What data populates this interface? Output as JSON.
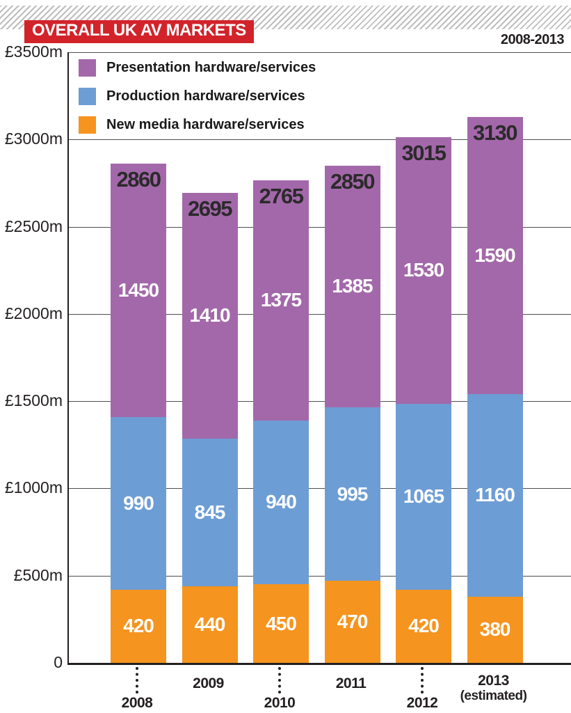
{
  "header": {
    "title": "OVERALL UK AV MARKETS",
    "range": "2008-2013",
    "badge_color": "#d2232a"
  },
  "legend": {
    "items": [
      {
        "label": "Presentation hardware/services",
        "color": "#a368aa"
      },
      {
        "label": "Production hardware/services",
        "color": "#6d9dd5"
      },
      {
        "label": "New media hardware/services",
        "color": "#f5941f"
      }
    ]
  },
  "y_axis": {
    "tick_labels": [
      "£3500m",
      "£3000m",
      "£2500m",
      "£2000m",
      "£1500m",
      "£1000m",
      "£500m",
      "0"
    ],
    "max": 3500,
    "step": 500
  },
  "chart_data": {
    "type": "bar",
    "stacked": true,
    "title": "OVERALL UK AV MARKETS",
    "subtitle": "2008-2013",
    "categories": [
      "2008",
      "2009",
      "2010",
      "2011",
      "2012",
      "2013 (estimated)"
    ],
    "series": [
      {
        "name": "New media hardware/services",
        "color": "#f5941f",
        "values": [
          420,
          440,
          450,
          470,
          420,
          380
        ]
      },
      {
        "name": "Production hardware/services",
        "color": "#6d9dd5",
        "values": [
          990,
          845,
          940,
          995,
          1065,
          1160
        ]
      },
      {
        "name": "Presentation hardware/services",
        "color": "#a368aa",
        "values": [
          1450,
          1410,
          1375,
          1385,
          1530,
          1590
        ]
      }
    ],
    "totals": [
      2860,
      2695,
      2765,
      2850,
      3015,
      3130
    ],
    "ylabel": "£m",
    "ylim": [
      0,
      3500
    ],
    "grid": true,
    "legend_position": "top-left-inside"
  },
  "x_axis": {
    "labels": [
      {
        "text": "2008",
        "sub": "",
        "row": "low",
        "leader": true
      },
      {
        "text": "2009",
        "sub": "",
        "row": "high",
        "leader": false
      },
      {
        "text": "2010",
        "sub": "",
        "row": "low",
        "leader": true
      },
      {
        "text": "2011",
        "sub": "",
        "row": "high",
        "leader": false
      },
      {
        "text": "2012",
        "sub": "",
        "row": "low",
        "leader": true
      },
      {
        "text": "2013",
        "sub": "(estimated)",
        "row": "high",
        "leader": false
      }
    ]
  }
}
